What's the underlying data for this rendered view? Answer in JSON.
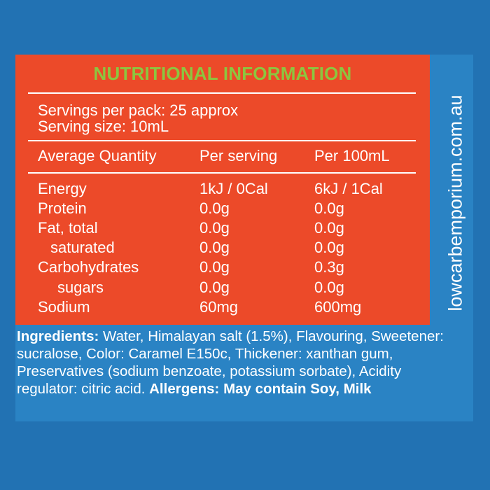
{
  "title": "NUTRITIONAL INFORMATION",
  "servings": {
    "per_pack": "Servings per pack: 25 approx",
    "size": "Serving size: 10mL"
  },
  "table": {
    "headers": [
      "Average Quantity",
      "Per serving",
      "Per 100mL"
    ],
    "rows": [
      {
        "label": "Energy",
        "per_serving": "1kJ / 0Cal",
        "per_100": "6kJ / 1Cal"
      },
      {
        "label": "Protein",
        "per_serving": "0.0g",
        "per_100": "0.0g"
      },
      {
        "label": "Fat, total",
        "per_serving": "0.0g",
        "per_100": "0.0g"
      },
      {
        "label": "saturated",
        "per_serving": "0.0g",
        "per_100": "0.0g"
      },
      {
        "label": "Carbohydrates",
        "per_serving": "0.0g",
        "per_100": "0.3g"
      },
      {
        "label": "sugars",
        "per_serving": "0.0g",
        "per_100": "0.0g"
      },
      {
        "label": "Sodium",
        "per_serving": "60mg",
        "per_100": "600mg"
      }
    ]
  },
  "side_text": "lowcarbemporium.com.au",
  "ingredients": {
    "label": "Ingredients:",
    "text": " Water, Himalayan salt (1.5%), Flavouring, Sweetener: sucralose, Color: Caramel E150c, Thickener: xanthan gum, Preservatives (sodium benzoate, potassium sorbate), Acidity regulator: citric acid. ",
    "allergens": "Allergens: May contain Soy, Milk"
  },
  "colors": {
    "background": "#2272b3",
    "panel": "#2a83c4",
    "label_orange": "#ec4a29",
    "title_green": "#8cc63f",
    "text": "#ffffff"
  }
}
